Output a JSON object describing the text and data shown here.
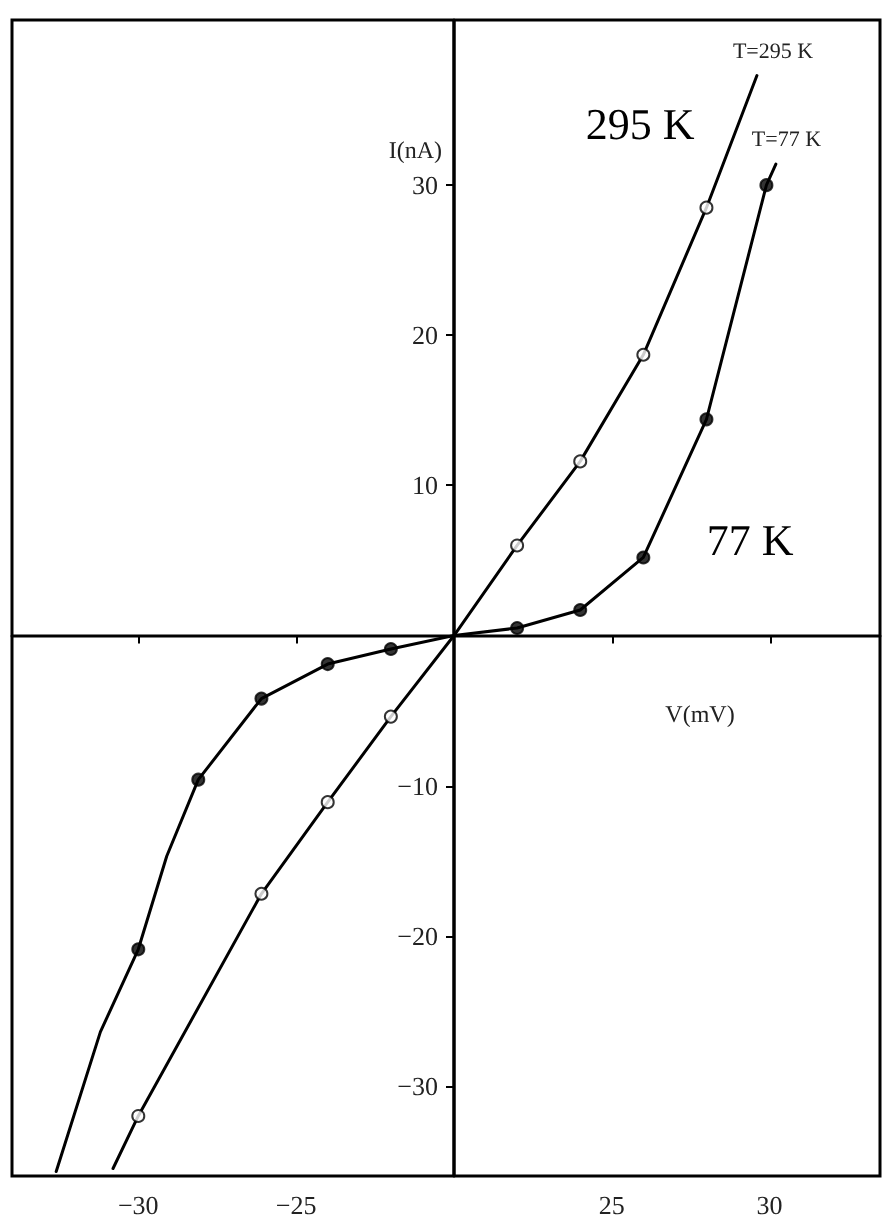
{
  "chart_data": [
    {
      "type": "line",
      "ylabel": "I(nA)",
      "xlim": [
        -34,
        -20
      ],
      "ylim": [
        -36,
        41
      ],
      "xticks": [
        -30,
        -25
      ],
      "yticks": [
        -30,
        -20,
        -10,
        10,
        20,
        30
      ],
      "grid": false,
      "legend": false,
      "series": [
        {
          "marker": "none",
          "color": "#000000",
          "x": [
            -30.8,
            -30,
            -26.1,
            -24,
            -22,
            -20
          ],
          "values": [
            -35.5,
            -32,
            -17.2,
            -11.1,
            -5.4,
            0
          ]
        },
        {
          "marker": "none",
          "color": "#000000",
          "x": [
            -32.6,
            -31.2,
            -30,
            -29.1,
            -28.1,
            -26.1,
            -24,
            -22,
            -20
          ],
          "values": [
            -35.7,
            -26.4,
            -20.9,
            -14.7,
            -9.6,
            -4.2,
            -1.9,
            -0.9,
            0
          ]
        },
        {
          "type": "scatter",
          "marker": "circle",
          "color": "#ffffff",
          "x": [
            -30,
            -26.1,
            -24,
            -22
          ],
          "values": [
            -32,
            -17.2,
            -11.1,
            -5.4
          ]
        },
        {
          "type": "scatter",
          "marker": "circle",
          "color": "#000000",
          "x": [
            -30,
            -28.1,
            -26.1,
            -24,
            -22
          ],
          "values": [
            -20.9,
            -9.6,
            -4.2,
            -1.9,
            -0.9
          ]
        }
      ]
    },
    {
      "type": "line",
      "xlabel": "V(mV)",
      "xlim": [
        20,
        33.5
      ],
      "ylim": [
        -36,
        41
      ],
      "xticks": [
        25,
        30
      ],
      "yticks": [
        -30,
        -20,
        -10,
        10,
        20,
        30
      ],
      "tick_labels": "x",
      "grid": false,
      "legend": false,
      "annotations": [
        "295 K",
        "77 K"
      ],
      "series": [
        {
          "name": "T=295 K",
          "marker": "none",
          "color": "#000000",
          "x": [
            20,
            22,
            24,
            26,
            28,
            29.6
          ],
          "values": [
            0,
            6.0,
            11.6,
            18.7,
            28.5,
            37.3
          ]
        },
        {
          "name": "T=77 K",
          "marker": "none",
          "color": "#000000",
          "x": [
            20,
            22,
            24,
            26,
            28,
            29.9,
            30.2
          ],
          "values": [
            0,
            0.5,
            1.7,
            5.2,
            14.4,
            30.0,
            31.4
          ]
        },
        {
          "type": "scatter",
          "marker": "circle",
          "color": "#ffffff",
          "x": [
            22,
            24,
            26,
            28
          ],
          "values": [
            6.0,
            11.6,
            18.7,
            28.5
          ]
        },
        {
          "type": "scatter",
          "marker": "circle",
          "color": "#000000",
          "x": [
            22,
            24,
            26,
            28,
            29.9
          ],
          "values": [
            0.5,
            1.7,
            5.2,
            14.4,
            30.0
          ]
        }
      ]
    }
  ]
}
